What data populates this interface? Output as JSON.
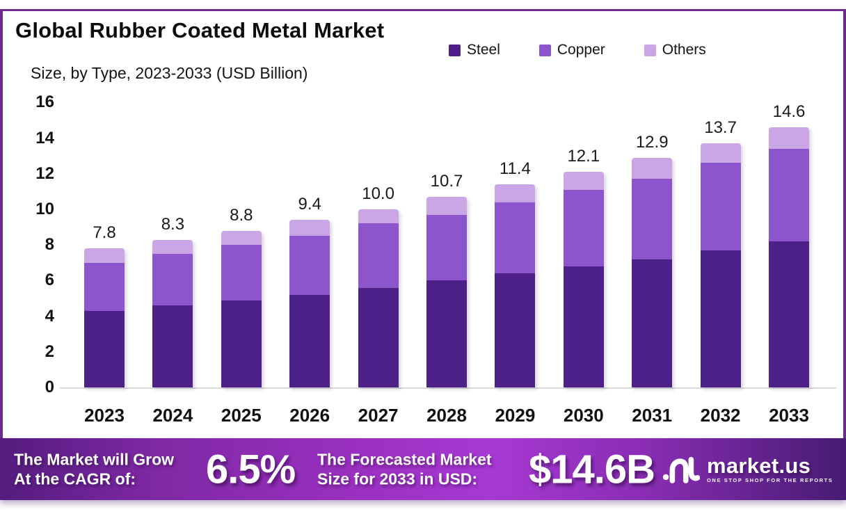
{
  "header": {
    "title": "Global Rubber Coated Metal Market",
    "subtitle": "Size, by Type, 2023-2033 (USD Billion)"
  },
  "legend": [
    {
      "label": "Steel",
      "color": "#4e2188"
    },
    {
      "label": "Copper",
      "color": "#8c55cc"
    },
    {
      "label": "Others",
      "color": "#cba6e6"
    }
  ],
  "chart_data": {
    "type": "bar",
    "stacked": true,
    "title": "Global Rubber Coated Metal Market Size, by Type, 2023-2033 (USD Billion)",
    "categories": [
      "2023",
      "2024",
      "2025",
      "2026",
      "2027",
      "2028",
      "2029",
      "2030",
      "2031",
      "2032",
      "2033"
    ],
    "series": [
      {
        "name": "Steel",
        "color": "#4e2188",
        "values": [
          4.3,
          4.6,
          4.9,
          5.2,
          5.6,
          6.0,
          6.4,
          6.8,
          7.2,
          7.7,
          8.2
        ]
      },
      {
        "name": "Copper",
        "color": "#8c55cc",
        "values": [
          2.7,
          2.9,
          3.1,
          3.3,
          3.6,
          3.7,
          4.0,
          4.3,
          4.5,
          4.9,
          5.2
        ]
      },
      {
        "name": "Others",
        "color": "#cba6e6",
        "values": [
          0.8,
          0.8,
          0.8,
          0.9,
          0.8,
          1.0,
          1.0,
          1.0,
          1.2,
          1.1,
          1.2
        ]
      }
    ],
    "totals": [
      7.8,
      8.3,
      8.8,
      9.4,
      10.0,
      10.7,
      11.4,
      12.1,
      12.9,
      13.7,
      14.6
    ],
    "total_labels": [
      "7.8",
      "8.3",
      "8.8",
      "9.4",
      "10.0",
      "10.7",
      "11.4",
      "12.1",
      "12.9",
      "13.7",
      "14.6"
    ],
    "xlabel": "",
    "ylabel": "",
    "ylim": [
      0,
      16
    ],
    "ytick_step": 2,
    "grid": false,
    "legend_position": "top-right"
  },
  "banner": {
    "cagr_label_line1": "The Market will Grow",
    "cagr_label_line2": "At the CAGR of:",
    "cagr_value": "6.5%",
    "forecast_label_line1": "The Forecasted Market",
    "forecast_label_line2": "Size for 2033 in USD:",
    "forecast_value": "$14.6B",
    "logo_name": "market.us",
    "logo_tagline": "ONE STOP SHOP FOR THE REPORTS"
  },
  "colors": {
    "frame": "#6d2b8e",
    "axis_line": "#d9d9d9",
    "banner_gradient_left": "#541c7e",
    "banner_gradient_mid": "#a739d3",
    "banner_gradient_right": "#471b73",
    "text": "#111111",
    "banner_text": "#ffffff"
  }
}
